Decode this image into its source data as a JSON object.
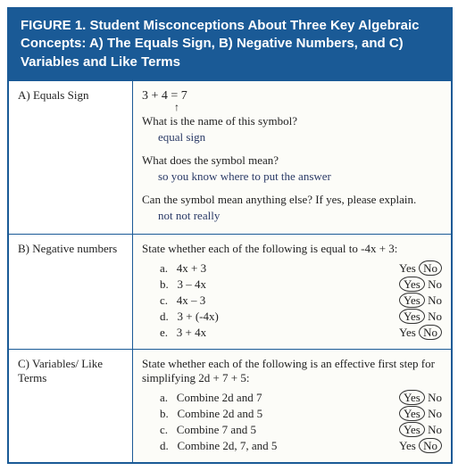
{
  "header": {
    "title": "FIGURE 1. Student Misconceptions About Three Key Algebraic Concepts: A) The Equals Sign, B) Negative Numbers, and C) Variables and Like Terms"
  },
  "rowA": {
    "label": "A) Equals Sign",
    "expression": "3 + 4 = 7",
    "q1": "What is the name of this symbol?",
    "a1": "equal sign",
    "q2": "What does the symbol mean?",
    "a2": "so you know where to put the answer",
    "q3": "Can the symbol mean anything else? If yes, please explain.",
    "a3": "not  not really"
  },
  "rowB": {
    "label": "B) Negative numbers",
    "prompt": "State whether each of the following is equal to -4x + 3:",
    "items": [
      {
        "letter": "a.",
        "text": "4x + 3",
        "yes": "Yes",
        "no": "No",
        "circled": "no"
      },
      {
        "letter": "b.",
        "text": "3 – 4x",
        "yes": "Yes",
        "no": "No",
        "circled": "yes"
      },
      {
        "letter": "c.",
        "text": "4x – 3",
        "yes": "Yes",
        "no": "No",
        "circled": "yes"
      },
      {
        "letter": "d.",
        "text": "3 + (-4x)",
        "yes": "Yes",
        "no": "No",
        "circled": "yes"
      },
      {
        "letter": "e.",
        "text": "3 + 4x",
        "yes": "Yes",
        "no": "No",
        "circled": "no"
      }
    ]
  },
  "rowC": {
    "label": "C) Variables/ Like Terms",
    "prompt": "State whether each of the following is an effective first step for simplifying 2d + 7 + 5:",
    "items": [
      {
        "letter": "a.",
        "text": "Combine 2d and 7",
        "yes": "Yes",
        "no": "No",
        "circled": "yes"
      },
      {
        "letter": "b.",
        "text": "Combine 2d and 5",
        "yes": "Yes",
        "no": "No",
        "circled": "yes"
      },
      {
        "letter": "c.",
        "text": "Combine 7 and 5",
        "yes": "Yes",
        "no": "No",
        "circled": "yes"
      },
      {
        "letter": "d.",
        "text": "Combine 2d, 7, and 5",
        "yes": "Yes",
        "no": "No",
        "circled": "no"
      }
    ]
  },
  "colors": {
    "header_bg": "#1a5a96",
    "header_text": "#ffffff",
    "border": "#1a5a96",
    "handwriting": "#2a3a66"
  }
}
